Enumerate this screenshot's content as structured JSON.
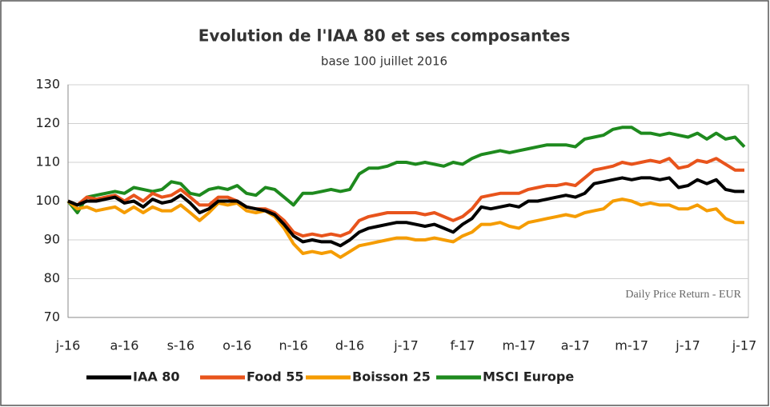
{
  "chart_data": {
    "type": "line",
    "title": "Evolution de l'IAA 80 et ses composantes",
    "subtitle": "base 100 juillet 2016",
    "annotation": "Daily Price Return - EUR",
    "categories": [
      "j-16",
      null,
      null,
      null,
      null,
      null,
      "a-16",
      null,
      null,
      null,
      null,
      null,
      "s-16",
      null,
      null,
      null,
      null,
      null,
      "o-16",
      null,
      null,
      null,
      null,
      null,
      "n-16",
      null,
      null,
      null,
      null,
      null,
      "d-16",
      null,
      null,
      null,
      null,
      null,
      "j-17",
      null,
      null,
      null,
      null,
      null,
      "f-17",
      null,
      null,
      null,
      null,
      null,
      "m-17",
      null,
      null,
      null,
      null,
      null,
      "a-17",
      null,
      null,
      null,
      null,
      null,
      "m-17",
      null,
      null,
      null,
      null,
      null,
      "j-17",
      null,
      null,
      null,
      null,
      null,
      "j-17"
    ],
    "series": [
      {
        "name": "IAA 80",
        "color": "#000000",
        "values": [
          100,
          99,
          100,
          100,
          100.5,
          101,
          99.5,
          100,
          98.5,
          100.5,
          99.5,
          100,
          101.5,
          99.5,
          97,
          98,
          100,
          100,
          100,
          98.5,
          98,
          97.5,
          96.5,
          94,
          91,
          89.5,
          90,
          89.5,
          89.5,
          88.5,
          90,
          92,
          93,
          93.5,
          94,
          94.5,
          94.5,
          94,
          93.5,
          94,
          93,
          92,
          94,
          95.5,
          98.5,
          98,
          98.5,
          99,
          98.5,
          100,
          100,
          100.5,
          101,
          101.5,
          101,
          102,
          104.5,
          105,
          105.5,
          106,
          105.5,
          106,
          106,
          105.5,
          106,
          103.5,
          104,
          105.5,
          104.5,
          105.5,
          103,
          102.5,
          102.5
        ]
      },
      {
        "name": "Food 55",
        "color": "#e8541c",
        "values": [
          100,
          99,
          101,
          100.5,
          101,
          101.5,
          100,
          101.5,
          100,
          102,
          101,
          101.5,
          103,
          101,
          99,
          99,
          101,
          101,
          100,
          98.5,
          98,
          98,
          97,
          95,
          92,
          91,
          91.5,
          91,
          91.5,
          91,
          92,
          95,
          96,
          96.5,
          97,
          97,
          97,
          97,
          96.5,
          97,
          96,
          95,
          96,
          98,
          101,
          101.5,
          102,
          102,
          102,
          103,
          103.5,
          104,
          104,
          104.5,
          104,
          106,
          108,
          108.5,
          109,
          110,
          109.5,
          110,
          110.5,
          110,
          111,
          108.5,
          109,
          110.5,
          110,
          111,
          109.5,
          108,
          108
        ]
      },
      {
        "name": "Boisson 25",
        "color": "#f59c00",
        "values": [
          100,
          98,
          98.5,
          97.5,
          98,
          98.5,
          97,
          98.5,
          97,
          98.5,
          97.5,
          97.5,
          99,
          97,
          95,
          97,
          99.5,
          99,
          99.5,
          97.5,
          97,
          97.5,
          96,
          93,
          89,
          86.5,
          87,
          86.5,
          87,
          85.5,
          87,
          88.5,
          89,
          89.5,
          90,
          90.5,
          90.5,
          90,
          90,
          90.5,
          90,
          89.5,
          91,
          92,
          94,
          94,
          94.5,
          93.5,
          93,
          94.5,
          95,
          95.5,
          96,
          96.5,
          96,
          97,
          97.5,
          98,
          100,
          100.5,
          100,
          99,
          99.5,
          99,
          99,
          98,
          98,
          99,
          97.5,
          98,
          95.5,
          94.5,
          94.5
        ]
      },
      {
        "name": "MSCI Europe",
        "color": "#1e8a1e",
        "values": [
          100,
          97,
          101,
          101.5,
          102,
          102.5,
          102,
          103.5,
          103,
          102.5,
          103,
          105,
          104.5,
          102,
          101.5,
          103,
          103.5,
          103,
          104,
          102,
          101.5,
          103.5,
          103,
          101,
          99,
          102,
          102,
          102.5,
          103,
          102.5,
          103,
          107,
          108.5,
          108.5,
          109,
          110,
          110,
          109.5,
          110,
          109.5,
          109,
          110,
          109.5,
          111,
          112,
          112.5,
          113,
          112.5,
          113,
          113.5,
          114,
          114.5,
          114.5,
          114.5,
          114,
          116,
          116.5,
          117,
          118.5,
          119,
          119,
          117.5,
          117.5,
          117,
          117.5,
          117,
          116.5,
          117.5,
          116,
          117.5,
          116,
          116.5,
          114
        ]
      }
    ],
    "ylim": [
      70,
      130
    ],
    "yticks": [
      70,
      80,
      90,
      100,
      110,
      120,
      130
    ],
    "grid": true,
    "legend": "bottom"
  }
}
